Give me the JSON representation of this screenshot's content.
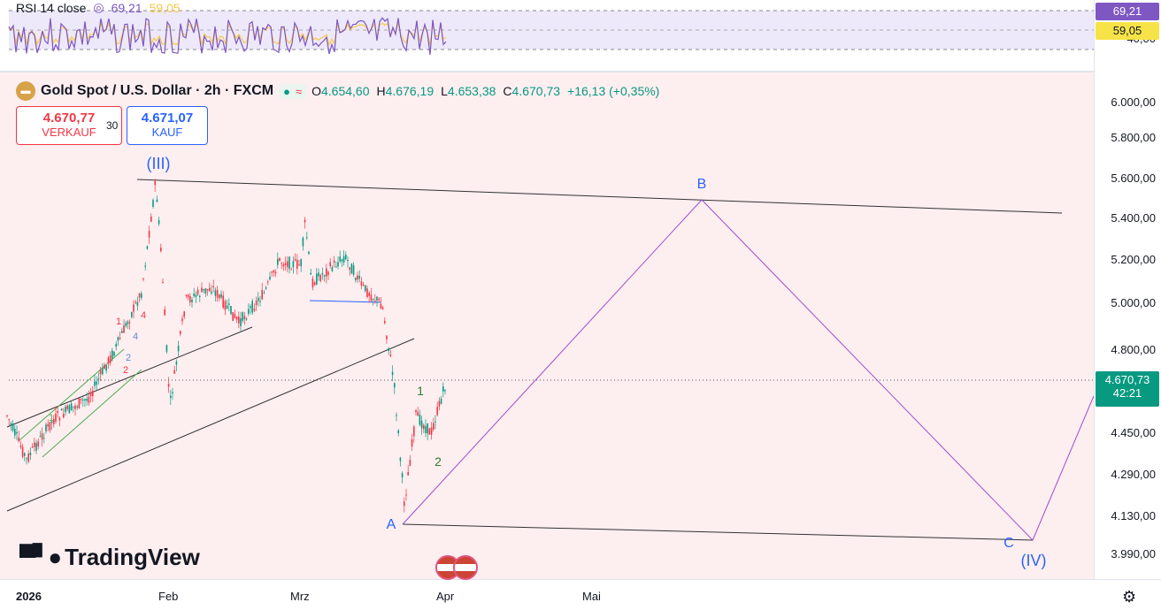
{
  "rsi": {
    "label": "RSI 14 close",
    "value1": "69,21",
    "value2": "59,05",
    "tag1": "69,21",
    "tag2": "59,05",
    "axis_label": "40,00",
    "colors": {
      "line": "#7e57c2",
      "signal": "#f7c948",
      "bg": "#ede9fb"
    }
  },
  "header": {
    "symbol": "Gold Spot / U.S. Dollar · 2h · FXCM",
    "status_dot": "●",
    "status_wave": "≈",
    "open_label": "O",
    "open": "4.654,60",
    "high_label": "H",
    "high": "4.676,19",
    "low_label": "L",
    "low": "4.653,38",
    "close_label": "C",
    "close": "4.670,73",
    "change": "+16,13 (+0,35%)"
  },
  "trade": {
    "sell_price": "4.670,77",
    "sell_label": "VERKAUF",
    "spread": "30",
    "buy_price": "4.671,07",
    "buy_label": "KAUF"
  },
  "price_axis": {
    "labels": [
      "6.000,00",
      "5.800,00",
      "5.600,00",
      "5.400,00",
      "5.200,00",
      "5.000,00",
      "4.800,00",
      "4.450,00",
      "4.290,00",
      "4.130,00",
      "3.990,00"
    ],
    "current_price": "4.670,73",
    "countdown": "42:21"
  },
  "time_axis": {
    "labels": [
      "2026",
      "Feb",
      "Mrz",
      "Apr",
      "Mai"
    ]
  },
  "waves": {
    "wave3": "(III)",
    "wave4": "(IV)",
    "a": "A",
    "b": "B",
    "c": "C",
    "sub1": "1",
    "sub2": "2",
    "red1": "1",
    "red4": "4",
    "red2": "2",
    "blue4": "4",
    "blue2": "2",
    "g1": "1"
  },
  "watermark": "TradingView",
  "colors": {
    "up": "#089981",
    "down": "#f23645",
    "projection": "#9c4dcc",
    "wave_blue": "#2962ff",
    "main_bg": "#fdeef0"
  }
}
